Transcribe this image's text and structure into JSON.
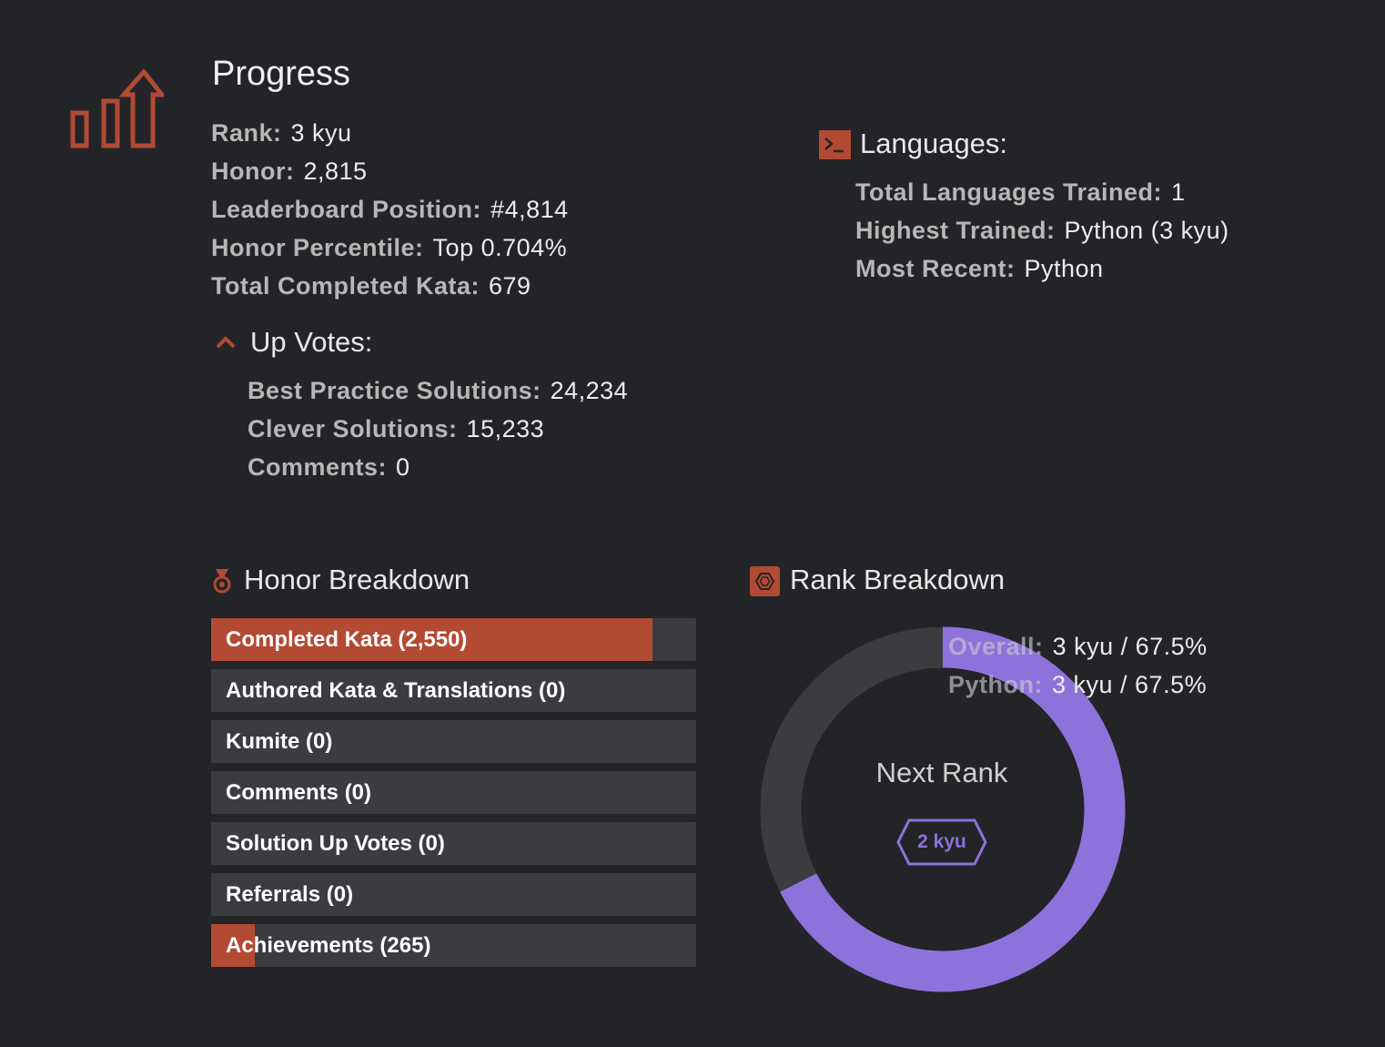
{
  "progress": {
    "title": "Progress",
    "stats": [
      {
        "label": "Rank:",
        "value": "3 kyu"
      },
      {
        "label": "Honor:",
        "value": "2,815"
      },
      {
        "label": "Leaderboard Position:",
        "value": "#4,814"
      },
      {
        "label": "Honor Percentile:",
        "value": "Top 0.704%"
      },
      {
        "label": "Total Completed Kata:",
        "value": "679"
      }
    ]
  },
  "upvotes": {
    "title": "Up Votes:",
    "stats": [
      {
        "label": "Best Practice Solutions:",
        "value": "24,234"
      },
      {
        "label": "Clever Solutions:",
        "value": "15,233"
      },
      {
        "label": "Comments:",
        "value": "0"
      }
    ]
  },
  "languages": {
    "title": "Languages:",
    "stats": [
      {
        "label": "Total Languages Trained:",
        "value": "1"
      },
      {
        "label": "Highest Trained:",
        "value": "Python (3 kyu)"
      },
      {
        "label": "Most Recent:",
        "value": "Python"
      }
    ]
  },
  "honor_breakdown": {
    "title": "Honor Breakdown",
    "bars": [
      {
        "label": "Completed Kata (2,550)",
        "fraction": 0.91
      },
      {
        "label": "Authored Kata & Translations (0)",
        "fraction": 0
      },
      {
        "label": "Kumite (0)",
        "fraction": 0
      },
      {
        "label": "Comments (0)",
        "fraction": 0
      },
      {
        "label": "Solution Up Votes (0)",
        "fraction": 0
      },
      {
        "label": "Referrals (0)",
        "fraction": 0
      },
      {
        "label": "Achievements (265)",
        "fraction": 0.09
      }
    ]
  },
  "rank_breakdown": {
    "title": "Rank Breakdown",
    "stats": [
      {
        "label": "Overall:",
        "value": "3 kyu / 67.5%"
      },
      {
        "label": "Python:",
        "value": "3 kyu / 67.5%"
      }
    ],
    "progress_fraction": 0.675,
    "next_rank_label": "Next Rank",
    "next_rank_badge": "2 kyu"
  },
  "colors": {
    "accent": "#b34a33",
    "purple": "#8e72db",
    "track": "#3b3c40",
    "background": "#232427"
  },
  "icons": {
    "progress": "chart-arrow-up-icon",
    "upvotes": "chevron-up-icon",
    "languages": "terminal-icon",
    "honor": "medal-icon",
    "rank": "hexagon-icon"
  }
}
